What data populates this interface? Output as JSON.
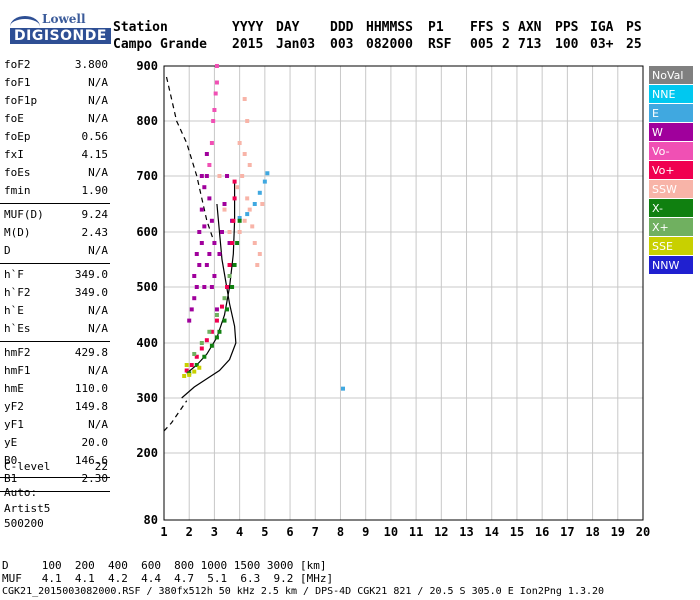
{
  "logo": {
    "top": "Lowell",
    "bottom": "DIGISONDE"
  },
  "header": {
    "row1": [
      "Station",
      "YYYY",
      "DAY",
      "DDD",
      "HHMMSS",
      "P1",
      "FFS",
      "S",
      "AXN",
      "PPS",
      "IGA",
      "PS"
    ],
    "row2": [
      "Campo Grande",
      "2015",
      "Jan03",
      "003",
      "082000",
      "RSF",
      "005",
      "2",
      "713",
      "100",
      "03+",
      "25"
    ]
  },
  "params": [
    {
      "name": "foF2",
      "value": "3.800"
    },
    {
      "name": "foF1",
      "value": "N/A"
    },
    {
      "name": "foF1p",
      "value": "N/A"
    },
    {
      "name": "foE",
      "value": "N/A"
    },
    {
      "name": "foEp",
      "value": "0.56"
    },
    {
      "name": "fxI",
      "value": "4.15"
    },
    {
      "name": "foEs",
      "value": "N/A"
    },
    {
      "name": "fmin",
      "value": "1.90"
    },
    {
      "name": "MUF(D)",
      "value": "9.24"
    },
    {
      "name": "M(D)",
      "value": "2.43"
    },
    {
      "name": "D",
      "value": "N/A"
    },
    {
      "name": "h`F",
      "value": "349.0"
    },
    {
      "name": "h`F2",
      "value": "349.0"
    },
    {
      "name": "h`E",
      "value": "N/A"
    },
    {
      "name": "h`Es",
      "value": "N/A"
    },
    {
      "name": "hmF2",
      "value": "429.8"
    },
    {
      "name": "hmF1",
      "value": "N/A"
    },
    {
      "name": "hmE",
      "value": "110.0"
    },
    {
      "name": "yF2",
      "value": "149.8"
    },
    {
      "name": "yF1",
      "value": "N/A"
    },
    {
      "name": "yE",
      "value": "20.0"
    },
    {
      "name": "B0",
      "value": "146.6"
    },
    {
      "name": "B1",
      "value": "2.30"
    },
    {
      "name": "C-level",
      "value": "22"
    }
  ],
  "auto": [
    "Auto:",
    "Artist5",
    "500200"
  ],
  "legend": [
    {
      "label": "NoVal",
      "color": "#808080"
    },
    {
      "label": "NNE",
      "color": "#00c8f0"
    },
    {
      "label": "E",
      "color": "#40a8e0"
    },
    {
      "label": "W",
      "color": "#a0009c"
    },
    {
      "label": "Vo-",
      "color": "#f050b4"
    },
    {
      "label": "Vo+",
      "color": "#f00050"
    },
    {
      "label": "SSW",
      "color": "#f8b4a8"
    },
    {
      "label": "X-",
      "color": "#108010"
    },
    {
      "label": "X+",
      "color": "#70b060"
    },
    {
      "label": "SSE",
      "color": "#c8d000"
    },
    {
      "label": "NNW",
      "color": "#2020d0"
    }
  ],
  "footer": {
    "line1": "D     100  200  400  600  800 1000 1500 3000 [km]",
    "line2": "MUF   4.1  4.1  4.2  4.4  4.7  5.1  6.3  9.2 [MHz]",
    "line3": "CGK21_2015003082000.RSF / 380fx512h 50 kHz 2.5 km / DPS-4D CGK21 821 / 20.5 S 305.0 E Ion2Png 1.3.20"
  },
  "chart_data": {
    "type": "scatter",
    "title": "",
    "xlabel": "",
    "ylabel": "",
    "xlim": [
      1,
      20
    ],
    "ylim": [
      80,
      900
    ],
    "x_ticks": [
      1,
      2,
      3,
      4,
      5,
      6,
      7,
      8,
      9,
      10,
      11,
      12,
      13,
      14,
      15,
      16,
      17,
      18,
      19,
      20
    ],
    "y_ticks": [
      80,
      200,
      300,
      400,
      500,
      600,
      700,
      800,
      900
    ],
    "grid": true,
    "series": [
      {
        "name": "W",
        "color": "#a0009c",
        "points": [
          [
            2.1,
            460
          ],
          [
            2.2,
            520
          ],
          [
            2.3,
            560
          ],
          [
            2.4,
            600
          ],
          [
            2.5,
            640
          ],
          [
            2.6,
            680
          ],
          [
            2.7,
            700
          ],
          [
            2.8,
            660
          ],
          [
            2.9,
            620
          ],
          [
            3.0,
            580
          ],
          [
            2.2,
            480
          ],
          [
            2.4,
            540
          ],
          [
            2.6,
            610
          ],
          [
            2.8,
            560
          ],
          [
            3.0,
            520
          ],
          [
            3.2,
            560
          ],
          [
            2.3,
            500
          ],
          [
            2.5,
            580
          ],
          [
            2.7,
            540
          ],
          [
            2.9,
            500
          ],
          [
            3.1,
            460
          ],
          [
            2.0,
            440
          ],
          [
            2.6,
            500
          ],
          [
            3.3,
            600
          ],
          [
            2.5,
            700
          ],
          [
            2.7,
            740
          ],
          [
            3.4,
            650
          ],
          [
            3.5,
            700
          ],
          [
            3.7,
            620
          ],
          [
            3.6,
            580
          ]
        ]
      },
      {
        "name": "Vo-",
        "color": "#f050b4",
        "points": [
          [
            2.9,
            760
          ],
          [
            3.0,
            820
          ],
          [
            3.1,
            870
          ],
          [
            2.95,
            800
          ],
          [
            3.05,
            850
          ],
          [
            3.1,
            900
          ],
          [
            2.8,
            720
          ]
        ]
      },
      {
        "name": "Vo+",
        "color": "#f00050",
        "points": [
          [
            1.9,
            350
          ],
          [
            2.1,
            360
          ],
          [
            2.3,
            375
          ],
          [
            2.5,
            390
          ],
          [
            2.7,
            405
          ],
          [
            2.9,
            420
          ],
          [
            3.1,
            440
          ],
          [
            3.3,
            465
          ],
          [
            3.5,
            500
          ],
          [
            3.6,
            540
          ],
          [
            3.7,
            580
          ],
          [
            3.75,
            620
          ],
          [
            3.8,
            660
          ],
          [
            3.8,
            690
          ]
        ]
      },
      {
        "name": "SSW",
        "color": "#f8b4a8",
        "points": [
          [
            4.0,
            600
          ],
          [
            4.2,
            620
          ],
          [
            4.4,
            640
          ],
          [
            4.6,
            580
          ],
          [
            4.8,
            560
          ],
          [
            4.5,
            610
          ],
          [
            4.3,
            660
          ],
          [
            4.1,
            700
          ],
          [
            4.2,
            740
          ],
          [
            4.3,
            800
          ],
          [
            4.2,
            840
          ],
          [
            3.9,
            680
          ],
          [
            3.6,
            600
          ],
          [
            3.4,
            640
          ],
          [
            3.2,
            700
          ],
          [
            4.7,
            540
          ],
          [
            4.9,
            650
          ],
          [
            4.0,
            760
          ],
          [
            4.4,
            720
          ]
        ]
      },
      {
        "name": "E",
        "color": "#40a8e0",
        "points": [
          [
            4.0,
            625
          ],
          [
            4.3,
            632
          ],
          [
            4.6,
            650
          ],
          [
            4.8,
            670
          ],
          [
            5.0,
            690
          ],
          [
            5.1,
            705
          ],
          [
            8.1,
            317
          ]
        ]
      },
      {
        "name": "X-",
        "color": "#108010",
        "points": [
          [
            2.0,
            345
          ],
          [
            2.3,
            360
          ],
          [
            2.6,
            375
          ],
          [
            2.9,
            395
          ],
          [
            3.2,
            420
          ],
          [
            3.5,
            460
          ],
          [
            3.7,
            500
          ],
          [
            3.8,
            540
          ],
          [
            3.9,
            580
          ],
          [
            4.0,
            620
          ],
          [
            3.1,
            410
          ],
          [
            3.4,
            440
          ]
        ]
      },
      {
        "name": "X+",
        "color": "#70b060",
        "points": [
          [
            2.2,
            380
          ],
          [
            2.5,
            400
          ],
          [
            2.8,
            420
          ],
          [
            3.1,
            450
          ],
          [
            3.4,
            480
          ],
          [
            3.6,
            520
          ]
        ]
      },
      {
        "name": "SSE",
        "color": "#c8d000",
        "points": [
          [
            1.8,
            340
          ],
          [
            2.0,
            342
          ],
          [
            2.2,
            348
          ],
          [
            2.4,
            355
          ],
          [
            1.9,
            360
          ]
        ]
      }
    ],
    "lines": [
      {
        "name": "profile",
        "style": "solid",
        "points": [
          [
            1.7,
            300
          ],
          [
            2.2,
            320
          ],
          [
            2.7,
            335
          ],
          [
            3.2,
            350
          ],
          [
            3.6,
            370
          ],
          [
            3.85,
            400
          ],
          [
            3.8,
            430
          ],
          [
            3.6,
            470
          ],
          [
            3.45,
            510
          ],
          [
            3.3,
            550
          ],
          [
            3.2,
            600
          ],
          [
            3.1,
            650
          ]
        ]
      },
      {
        "name": "trace",
        "style": "solid",
        "points": [
          [
            1.9,
            345
          ],
          [
            2.3,
            360
          ],
          [
            2.7,
            380
          ],
          [
            3.1,
            410
          ],
          [
            3.4,
            450
          ],
          [
            3.6,
            500
          ],
          [
            3.75,
            560
          ],
          [
            3.8,
            620
          ],
          [
            3.8,
            690
          ]
        ]
      },
      {
        "name": "extrapolation",
        "style": "dashed",
        "points": [
          [
            1.1,
            880
          ],
          [
            1.5,
            800
          ],
          [
            1.9,
            760
          ],
          [
            2.3,
            700
          ],
          [
            2.7,
            620
          ],
          [
            3.0,
            580
          ]
        ]
      },
      {
        "name": "bottom",
        "style": "dashed",
        "points": [
          [
            1.0,
            240
          ],
          [
            1.3,
            255
          ],
          [
            1.6,
            275
          ],
          [
            1.9,
            295
          ]
        ]
      }
    ]
  }
}
